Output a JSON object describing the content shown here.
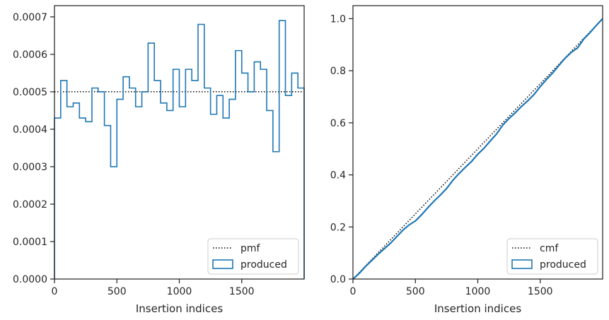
{
  "chart_data": [
    {
      "type": "histogram",
      "xlabel": "Insertion indices",
      "ylabel": "",
      "xlim": [
        0,
        2000
      ],
      "ylim": [
        0,
        0.00073
      ],
      "xticks": [
        0,
        500,
        1000,
        1500
      ],
      "xtick_labels": [
        "0",
        "500",
        "1000",
        "1500"
      ],
      "yticks": [
        0,
        0.0001,
        0.0002,
        0.0003,
        0.0004,
        0.0005,
        0.0006,
        0.0007
      ],
      "ytick_labels": [
        "0.0000",
        "0.0001",
        "0.0002",
        "0.0003",
        "0.0004",
        "0.0005",
        "0.0006",
        "0.0007"
      ],
      "legend_position": "lower-right",
      "series": [
        {
          "name": "pmf",
          "style": "dotted",
          "color": "#000000",
          "x": [
            0,
            2000
          ],
          "values": [
            0.0005,
            0.0005
          ]
        },
        {
          "name": "produced",
          "style": "step",
          "color": "#1f77b4",
          "bin_width": 50,
          "bin_starts": [
            0,
            50,
            100,
            150,
            200,
            250,
            300,
            350,
            400,
            450,
            500,
            550,
            600,
            650,
            700,
            750,
            800,
            850,
            900,
            950,
            1000,
            1050,
            1100,
            1150,
            1200,
            1250,
            1300,
            1350,
            1400,
            1450,
            1500,
            1550,
            1600,
            1650,
            1700,
            1750,
            1800,
            1850,
            1900,
            1950
          ],
          "values": [
            0.00043,
            0.00053,
            0.00046,
            0.00047,
            0.00043,
            0.00042,
            0.00051,
            0.0005,
            0.00041,
            0.0003,
            0.00048,
            0.00054,
            0.00051,
            0.00046,
            0.0005,
            0.00063,
            0.00053,
            0.00047,
            0.00045,
            0.00056,
            0.00046,
            0.00056,
            0.00053,
            0.00068,
            0.00051,
            0.00044,
            0.00049,
            0.00043,
            0.00048,
            0.00061,
            0.00055,
            0.0005,
            0.00058,
            0.00056,
            0.00045,
            0.00034,
            0.00069,
            0.00049,
            0.00055,
            0.00051
          ]
        }
      ]
    },
    {
      "type": "line",
      "xlabel": "Insertion indices",
      "ylabel": "",
      "xlim": [
        0,
        2000
      ],
      "ylim": [
        0,
        1.05
      ],
      "xticks": [
        0,
        500,
        1000,
        1500
      ],
      "xtick_labels": [
        "0",
        "500",
        "1000",
        "1500"
      ],
      "yticks": [
        0,
        0.2,
        0.4,
        0.6,
        0.8,
        1.0
      ],
      "ytick_labels": [
        "0.0",
        "0.2",
        "0.4",
        "0.6",
        "0.8",
        "1.0"
      ],
      "legend_position": "lower-right",
      "series": [
        {
          "name": "cmf",
          "style": "dotted",
          "color": "#000000",
          "x": [
            0,
            2000
          ],
          "values": [
            0,
            1.0
          ]
        },
        {
          "name": "produced",
          "style": "solid",
          "color": "#1f77b4",
          "x": [
            0,
            50,
            100,
            150,
            200,
            250,
            300,
            350,
            400,
            450,
            500,
            550,
            600,
            650,
            700,
            750,
            800,
            850,
            900,
            950,
            1000,
            1050,
            1100,
            1150,
            1200,
            1250,
            1300,
            1350,
            1400,
            1450,
            1500,
            1550,
            1600,
            1650,
            1700,
            1750,
            1800,
            1850,
            1900,
            1950,
            2000
          ],
          "values": [
            0,
            0.0215,
            0.048,
            0.071,
            0.0945,
            0.116,
            0.137,
            0.1625,
            0.1875,
            0.208,
            0.223,
            0.247,
            0.274,
            0.2995,
            0.3225,
            0.3475,
            0.379,
            0.4055,
            0.429,
            0.4515,
            0.4795,
            0.5025,
            0.5305,
            0.557,
            0.591,
            0.6165,
            0.6385,
            0.663,
            0.6845,
            0.7085,
            0.739,
            0.7665,
            0.7915,
            0.8205,
            0.8485,
            0.871,
            0.888,
            0.9225,
            0.947,
            0.9745,
            1.0
          ]
        }
      ]
    }
  ]
}
